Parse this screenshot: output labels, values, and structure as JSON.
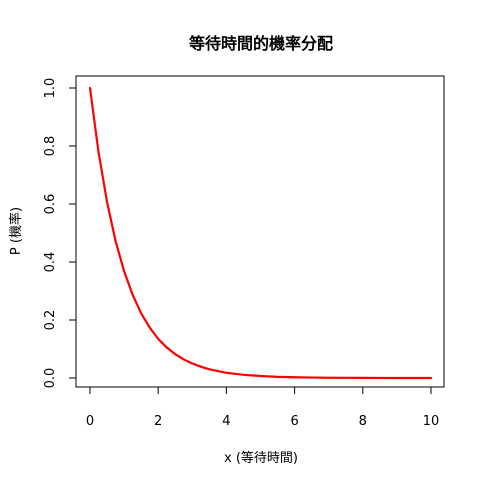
{
  "chart_data": {
    "type": "line",
    "title": "等待時間的機率分配",
    "xlabel": "x (等待時間)",
    "ylabel": "P (機率)",
    "xlim": [
      0,
      10
    ],
    "ylim": [
      0,
      1
    ],
    "x_ticks": [
      "0",
      "2",
      "4",
      "6",
      "8",
      "10"
    ],
    "y_ticks": [
      "0.0",
      "0.2",
      "0.4",
      "0.6",
      "0.8",
      "1.0"
    ],
    "grid": false,
    "legend": "none",
    "series": [
      {
        "color": "#ff0000",
        "x": [
          0,
          0.25,
          0.5,
          0.75,
          1,
          1.25,
          1.5,
          1.75,
          2,
          2.25,
          2.5,
          2.75,
          3,
          3.25,
          3.5,
          3.75,
          4,
          4.5,
          5,
          5.5,
          6,
          6.5,
          7,
          7.5,
          8,
          8.5,
          9,
          9.5,
          10
        ],
        "y": [
          1.0,
          0.779,
          0.607,
          0.472,
          0.368,
          0.287,
          0.223,
          0.174,
          0.135,
          0.105,
          0.082,
          0.064,
          0.05,
          0.039,
          0.03,
          0.024,
          0.018,
          0.011,
          0.007,
          0.004,
          0.0025,
          0.0015,
          0.0009,
          0.0006,
          0.0003,
          0.0002,
          0.0001,
          0.0001,
          0.0
        ]
      }
    ]
  }
}
